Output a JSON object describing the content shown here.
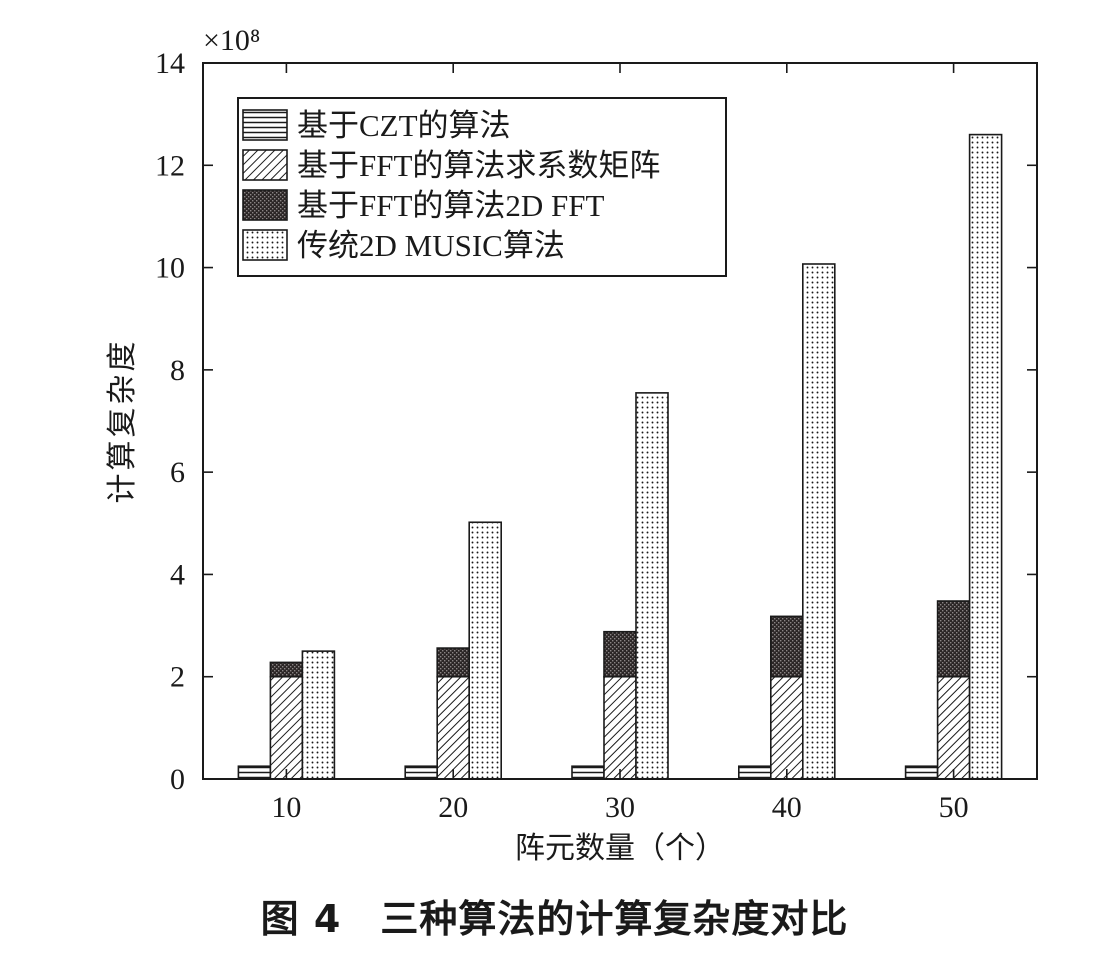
{
  "figure_caption": "图 4　三种算法的计算复杂度对比",
  "chart_data": {
    "type": "bar",
    "title": "",
    "xlabel": "阵元数量（个）",
    "ylabel": "计算复杂度",
    "y_multiplier": "×10⁸",
    "categories": [
      "10",
      "20",
      "30",
      "40",
      "50"
    ],
    "ylim": [
      0,
      14
    ],
    "yticks": [
      0,
      2,
      4,
      6,
      8,
      10,
      12,
      14
    ],
    "grid": false,
    "legend_position": "top-left",
    "series": [
      {
        "name": "基于CZT的算法",
        "values": [
          0.25,
          0.25,
          0.25,
          0.25,
          0.25
        ],
        "pattern": "horizontal-lines",
        "stack": "czt"
      },
      {
        "name": "基于FFT的算法求系数矩阵",
        "values": [
          2.0,
          2.0,
          2.0,
          2.0,
          2.0
        ],
        "pattern": "diagonal-hatch",
        "stack": "fft"
      },
      {
        "name": "基于FFT的算法2D FFT",
        "values": [
          0.28,
          0.56,
          0.88,
          1.18,
          1.48
        ],
        "pattern": "dense-crosshatch",
        "stack": "fft"
      },
      {
        "name": "传统2D MUSIC算法",
        "values": [
          2.5,
          5.02,
          7.55,
          10.07,
          12.6
        ],
        "pattern": "dots",
        "stack": "music"
      }
    ]
  }
}
